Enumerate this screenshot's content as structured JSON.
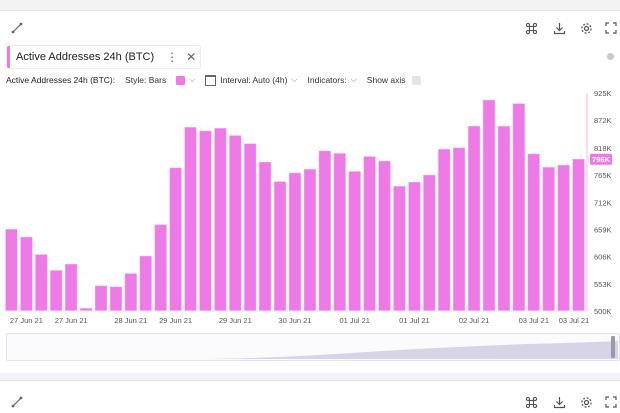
{
  "top_panel": {
    "tab_label": "Active Addresses 24h (BTC)",
    "toolbar": {
      "metric_label": "Active Addresses 24h (BTC):",
      "style_label": "Style: Bars",
      "interval_label": "Interval: Auto (4h)",
      "indicators_label": "Indicators:",
      "show_axis_label": "Show axis"
    },
    "icons": [
      "link-icon",
      "command-icon",
      "download-icon",
      "gear-icon",
      "fullscreen-icon"
    ]
  },
  "colors": {
    "bar": "#ee7ae8",
    "bar_stroke": "#f1a9ee",
    "price_badge": "#ee7ae8",
    "axis_line": "#f4b8f1",
    "navigator": "#d6d4e6"
  },
  "chart_data": {
    "type": "bar",
    "series": [
      {
        "values": [
          659,
          644,
          610,
          579,
          591,
          505,
          549,
          547,
          573,
          607,
          668,
          779,
          858,
          851,
          856,
          842,
          826,
          790,
          752,
          769,
          776,
          812,
          807,
          772,
          801,
          792,
          743,
          751,
          765,
          815,
          818,
          860,
          911,
          860,
          904,
          806,
          780,
          784,
          796
        ]
      }
    ],
    "ylim": [
      500,
      925
    ],
    "y_ticks": [
      "925K",
      "872K",
      "818K",
      "765K",
      "712K",
      "659K",
      "606K",
      "553K",
      "500K"
    ],
    "y_tick_values": [
      925,
      872,
      818,
      765,
      712,
      659,
      606,
      553,
      500
    ],
    "x_ticks": [
      "27 Jun 21",
      "27 Jun 21",
      "28 Jun 21",
      "29 Jun 21",
      "29 Jun 21",
      "30 Jun 21",
      "01 Jul 21",
      "01 Jul 21",
      "02 Jul 21",
      "03 Jul 21",
      "03 Jul 21"
    ],
    "x_tick_at_bar": [
      1,
      4,
      8,
      11,
      15,
      19,
      23,
      27,
      31,
      35,
      38
    ],
    "current_value_label": "796K",
    "current_value": 796
  }
}
